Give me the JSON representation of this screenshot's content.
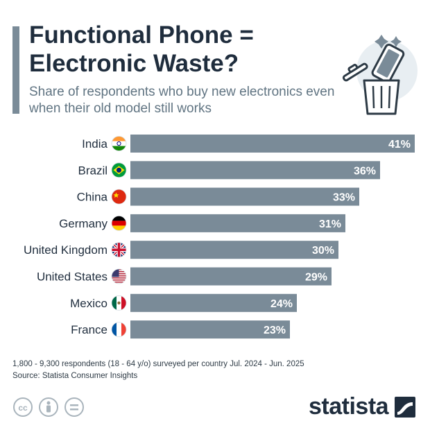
{
  "header": {
    "title": "Functional Phone = Electronic Waste?",
    "subtitle": "Share of respondents who buy new electronics even when their old model still works"
  },
  "colors": {
    "bar": "#7a8b98",
    "title": "#1f2d3d",
    "subtitle": "#607482",
    "accent": "#7a8b98"
  },
  "chart_data": {
    "type": "bar",
    "orientation": "horizontal",
    "categories": [
      "India",
      "Brazil",
      "China",
      "Germany",
      "United Kingdom",
      "United States",
      "Mexico",
      "France"
    ],
    "values": [
      41,
      36,
      33,
      31,
      30,
      29,
      24,
      23
    ],
    "value_labels": [
      "41%",
      "36%",
      "33%",
      "31%",
      "30%",
      "29%",
      "24%",
      "23%"
    ],
    "flags": [
      "india-flag",
      "brazil-flag",
      "china-flag",
      "germany-flag",
      "uk-flag",
      "usa-flag",
      "mexico-flag",
      "france-flag"
    ],
    "unit": "%",
    "xlim": [
      0,
      41
    ],
    "grid": false,
    "legend": "none"
  },
  "footer": {
    "note": "1,800 - 9,300 respondents (18 - 64 y/o) surveyed per country Jul. 2024 - Jun. 2025",
    "source": "Source: Statista Consumer Insights",
    "brand": "statista",
    "license_icons": [
      "cc-icon",
      "person-icon",
      "equals-icon"
    ]
  }
}
